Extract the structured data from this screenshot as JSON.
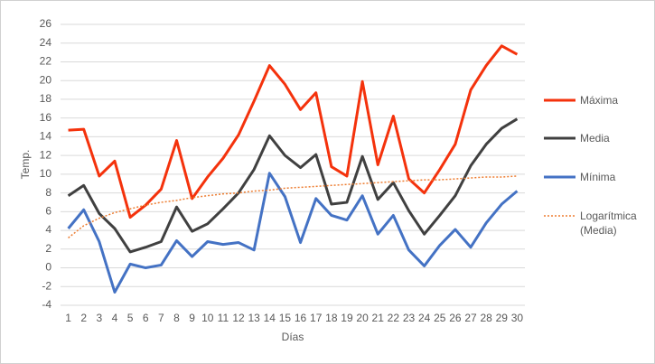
{
  "chart_data": {
    "type": "line",
    "x_label": "Días",
    "y_label": "Temp.",
    "categories": [
      "1",
      "2",
      "3",
      "4",
      "5",
      "6",
      "7",
      "8",
      "9",
      "10",
      "11",
      "12",
      "13",
      "14",
      "15",
      "16",
      "17",
      "18",
      "19",
      "20",
      "21",
      "22",
      "23",
      "24",
      "25",
      "26",
      "27",
      "28",
      "29",
      "30"
    ],
    "ylim": [
      -4,
      26
    ],
    "yticks": [
      -4,
      -2,
      0,
      2,
      4,
      6,
      8,
      10,
      12,
      14,
      16,
      18,
      20,
      22,
      24,
      26
    ],
    "grid": true,
    "legend": "right",
    "series": [
      {
        "name": "Máxima",
        "color": "#f4320c",
        "line_style": "solid",
        "values": [
          14.7,
          14.8,
          9.8,
          11.4,
          5.4,
          6.7,
          8.4,
          13.6,
          7.4,
          9.7,
          11.7,
          14.2,
          17.8,
          21.6,
          19.6,
          16.9,
          18.7,
          10.8,
          9.8,
          19.9,
          11.0,
          16.2,
          9.5,
          8.0,
          10.5,
          13.2,
          19.0,
          21.6,
          23.7,
          22.8
        ]
      },
      {
        "name": "Media",
        "color": "#404040",
        "line_style": "solid",
        "values": [
          7.7,
          8.8,
          5.8,
          4.2,
          1.7,
          2.2,
          2.8,
          6.5,
          3.9,
          4.7,
          6.3,
          8.0,
          10.5,
          14.1,
          12.0,
          10.7,
          12.1,
          6.8,
          7.0,
          11.9,
          7.3,
          9.1,
          6.1,
          3.6,
          5.6,
          7.7,
          10.9,
          13.2,
          14.9,
          15.9
        ]
      },
      {
        "name": "Mínima",
        "color": "#4472c4",
        "line_style": "solid",
        "values": [
          4.2,
          6.2,
          2.8,
          -2.6,
          0.4,
          0,
          0.3,
          2.9,
          1.2,
          2.8,
          2.5,
          2.7,
          1.9,
          10.1,
          7.6,
          2.7,
          7.4,
          5.6,
          5.1,
          7.7,
          3.6,
          5.6,
          1.9,
          0.2,
          2.4,
          4.1,
          2.2,
          4.8,
          6.8,
          8.2
        ]
      },
      {
        "name": "Logarítmica (Media)",
        "color": "#ed7d31",
        "line_style": "dotted",
        "values": [
          3.2,
          4.5,
          5.3,
          5.9,
          6.3,
          6.7,
          7.0,
          7.2,
          7.5,
          7.7,
          7.9,
          8.0,
          8.2,
          8.3,
          8.5,
          8.6,
          8.7,
          8.8,
          8.9,
          9.0,
          9.1,
          9.2,
          9.3,
          9.4,
          9.4,
          9.5,
          9.6,
          9.7,
          9.7,
          9.8
        ]
      }
    ]
  }
}
